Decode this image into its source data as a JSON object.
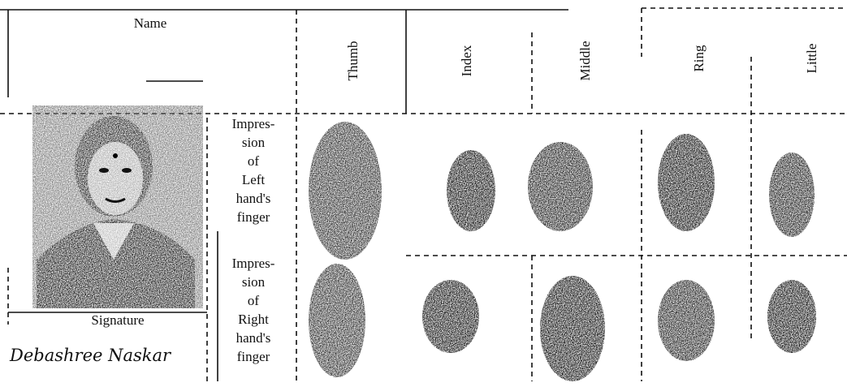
{
  "header": {
    "name_label": "Name",
    "fingers": [
      "Thumb",
      "Index",
      "Middle",
      "Ring",
      "Little"
    ]
  },
  "rows": [
    {
      "label_lines": [
        "Impres-",
        "sion",
        "of",
        "Left",
        "hand's",
        "finger"
      ]
    },
    {
      "label_lines": [
        "Impres-",
        "sion",
        "of",
        "Right",
        "hand's",
        "finger"
      ]
    }
  ],
  "signature": {
    "label": "Signature",
    "handwriting": "Debashree Naskar"
  }
}
